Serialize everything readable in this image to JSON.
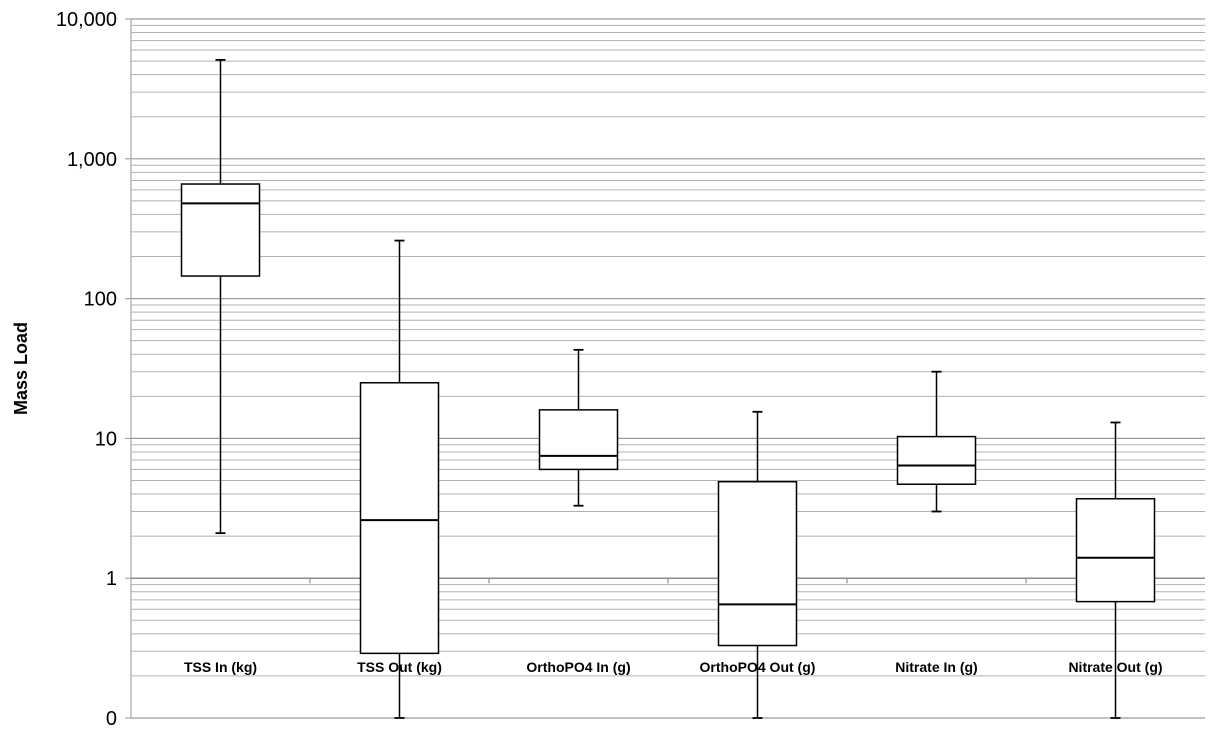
{
  "chart_data": {
    "type": "box",
    "title": "",
    "xlabel": "",
    "ylabel": "Mass Load",
    "yscale": "log",
    "ylim": [
      0.1,
      10000
    ],
    "yticks": [
      0.1,
      1,
      10,
      100,
      1000,
      10000
    ],
    "ytick_labels": [
      "0",
      "1",
      "10",
      "100",
      "1,000",
      "10,000"
    ],
    "grid": "major and minor horizontal",
    "legend": "none",
    "colors": {
      "box_stroke": "#000000",
      "grid": "#b0b0b0",
      "axis": "#a6a6a6"
    },
    "categories": [
      "TSS In (kg)",
      "TSS Out (kg)",
      "OrthoPO4 In (g)",
      "OrthoPO4 Out (g)",
      "Nitrate In (g)",
      "Nitrate Out (g)"
    ],
    "boxes": [
      {
        "min": 2.1,
        "q1": 145,
        "median": 480,
        "q3": 660,
        "max": 5100
      },
      {
        "min": 0.1,
        "q1": 0.29,
        "median": 2.6,
        "q3": 25,
        "max": 260
      },
      {
        "min": 3.3,
        "q1": 6.0,
        "median": 7.5,
        "q3": 16,
        "max": 43
      },
      {
        "min": 0.1,
        "q1": 0.33,
        "median": 0.65,
        "q3": 4.9,
        "max": 15.5
      },
      {
        "min": 3.0,
        "q1": 4.7,
        "median": 6.4,
        "q3": 10.3,
        "max": 30
      },
      {
        "min": 0.1,
        "q1": 0.68,
        "median": 1.4,
        "q3": 3.7,
        "max": 13
      }
    ]
  }
}
